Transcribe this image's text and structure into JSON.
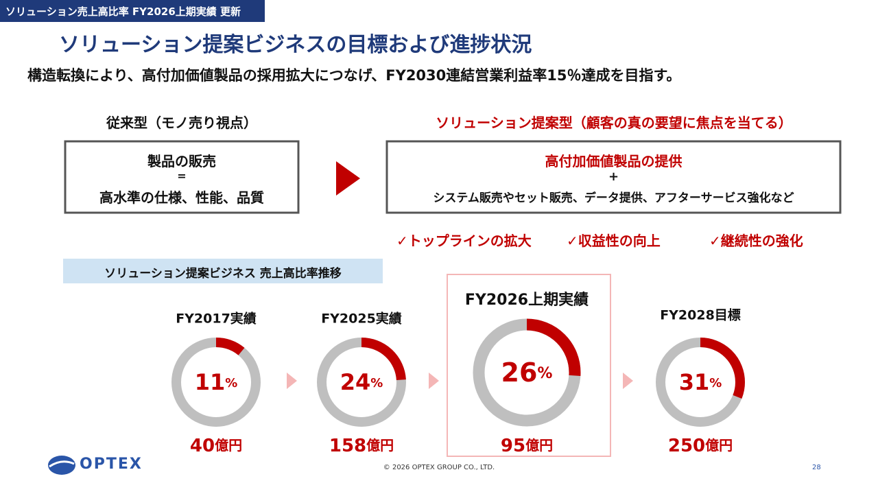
{
  "tag": "ソリューション売上高比率 FY2026上期実績 更新",
  "title": "ソリューション提案ビジネスの目標および進捗状況",
  "subtitle": "構造転換により、高付加価値製品の採用拡大につなげ、FY2030連結営業利益率15％達成を目指す。",
  "conventional": {
    "heading": "従来型（モノ売り視点）",
    "lines": [
      "製品の販売",
      "=",
      "高水準の仕様、性能、品質"
    ]
  },
  "solution": {
    "heading": "ソリューション提案型（顧客の真の要望に焦点を当てる）",
    "lines": [
      "高付加価値製品の提供",
      "+",
      "システム販売やセット販売、データ提供、アフターサービス強化など"
    ],
    "benefits": [
      "✓トップラインの拡大",
      "✓収益性の向上",
      "✓継続性の強化"
    ]
  },
  "chart_data": {
    "type": "donut",
    "title": "ソリューション提案ビジネス 売上高比率推移",
    "color": "#c00000",
    "track_color": "#bfbfbf",
    "categories": [
      "FY2017実績",
      "FY2025実績",
      "FY2026上期実績",
      "FY2028目標"
    ],
    "values": [
      11,
      24,
      26,
      31
    ],
    "value_unit": [
      "%",
      "%",
      "%",
      "%"
    ],
    "sales": [
      40,
      158,
      95,
      250
    ],
    "sales_unit": [
      "億円",
      "億円",
      "億円",
      "億円"
    ],
    "highlight": "FY2026上期実績"
  },
  "footer": {
    "logo": "OPTEX",
    "copyright": "© 2026 OPTEX GROUP CO., LTD.",
    "page": 28
  }
}
